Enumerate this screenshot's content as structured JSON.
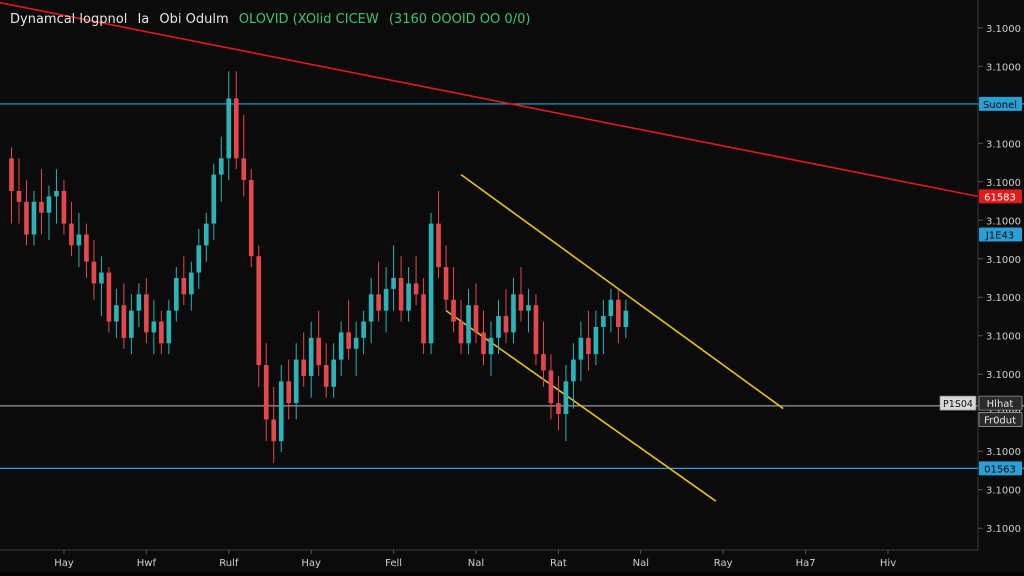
{
  "header": {
    "title": "Dynamcal logpnol",
    "interval": "Ia",
    "symbol": "Obi Odulm",
    "ohlc_label": "OLOVID (XOlid CICEW",
    "ohlc_values": "(3160 OOOID OO 0/0)"
  },
  "colors": {
    "background": "#0b0b0b",
    "up_candle": "#2bb3b8",
    "down_candle": "#e5474c",
    "support_line": "#2a9fd6",
    "trend_line": "#e01b1b",
    "channel_line": "#e8c21c",
    "mid_line": "#bdbdbd",
    "header_title": "#e6e6e6",
    "header_values": "#3cc46a"
  },
  "chart_data": {
    "type": "candlestick",
    "title": "Dynamcal logpnol",
    "xlabel": "",
    "ylabel": "",
    "y_range": [
      0,
      100
    ],
    "grid": false,
    "x_ticks": [
      "Hay",
      "Hwf",
      "Rulf",
      "Hay",
      "Fell",
      "Nal",
      "Rat",
      "Nal",
      "Ray",
      "Ha7",
      "Hiv"
    ],
    "y_ticks": [
      "3.1000",
      "3.1000",
      "3.1000",
      "3.1000",
      "3.1000",
      "3.1000",
      "3.1000",
      "3.1000",
      "3.1000",
      "3.1000",
      "3.1000",
      "3.1000",
      "3.1000",
      "3.1000"
    ],
    "price_tags": [
      {
        "label": "Suonel",
        "value": 82
      },
      {
        "label": "61583",
        "value": 65
      },
      {
        "label": "J1E43",
        "value": 58
      },
      {
        "label": "Hlhat",
        "value": 27
      },
      {
        "label": "Fr0dut",
        "value": 24
      },
      {
        "label": "01563",
        "value": 15
      }
    ],
    "line_labels": [
      {
        "label": "P1S04",
        "value": 27
      }
    ],
    "horizontal_lines": [
      {
        "name": "support-upper",
        "value": 82
      },
      {
        "name": "mid",
        "value": 26.5
      },
      {
        "name": "support-lower",
        "value": 15
      }
    ],
    "trend_lines": [
      {
        "name": "red-downtrend",
        "x1": -2,
        "y1": 101,
        "x2": 130,
        "y2": 65
      },
      {
        "name": "channel-upper",
        "x1": 61,
        "y1": 69,
        "x2": 104,
        "y2": 26
      },
      {
        "name": "channel-lower",
        "x1": 59,
        "y1": 44,
        "x2": 95,
        "y2": 9
      }
    ],
    "candles": [
      [
        1,
        72,
        74,
        60,
        66
      ],
      [
        2,
        66,
        72,
        60,
        64
      ],
      [
        3,
        64,
        68,
        56,
        58
      ],
      [
        4,
        58,
        66,
        56,
        64
      ],
      [
        5,
        64,
        70,
        58,
        62
      ],
      [
        6,
        62,
        67,
        57,
        65
      ],
      [
        7,
        65,
        70,
        60,
        66
      ],
      [
        8,
        66,
        68,
        58,
        60
      ],
      [
        9,
        60,
        64,
        54,
        56
      ],
      [
        10,
        56,
        62,
        52,
        58
      ],
      [
        11,
        58,
        60,
        50,
        53
      ],
      [
        12,
        53,
        57,
        46,
        49
      ],
      [
        13,
        49,
        54,
        43,
        51
      ],
      [
        14,
        51,
        52,
        40,
        42
      ],
      [
        15,
        42,
        48,
        39,
        45
      ],
      [
        16,
        45,
        49,
        37,
        39
      ],
      [
        17,
        39,
        47,
        36,
        44
      ],
      [
        18,
        44,
        49,
        41,
        47
      ],
      [
        19,
        47,
        50,
        38,
        40
      ],
      [
        20,
        40,
        46,
        36,
        42
      ],
      [
        21,
        42,
        44,
        36,
        38
      ],
      [
        22,
        38,
        46,
        36,
        44
      ],
      [
        23,
        44,
        52,
        42,
        50
      ],
      [
        24,
        50,
        54,
        45,
        47
      ],
      [
        25,
        47,
        53,
        44,
        51
      ],
      [
        26,
        51,
        59,
        48,
        56
      ],
      [
        27,
        56,
        62,
        53,
        60
      ],
      [
        28,
        60,
        71,
        57,
        69
      ],
      [
        29,
        69,
        76,
        64,
        72
      ],
      [
        30,
        72,
        88,
        68,
        83
      ],
      [
        31,
        83,
        88,
        70,
        72
      ],
      [
        32,
        72,
        80,
        65,
        68
      ],
      [
        33,
        68,
        70,
        52,
        54
      ],
      [
        34,
        54,
        56,
        30,
        34
      ],
      [
        35,
        34,
        38,
        20,
        24
      ],
      [
        36,
        24,
        30,
        16,
        20
      ],
      [
        37,
        20,
        34,
        18,
        31
      ],
      [
        38,
        31,
        35,
        24,
        27
      ],
      [
        39,
        27,
        38,
        24,
        35
      ],
      [
        40,
        35,
        40,
        30,
        32
      ],
      [
        41,
        32,
        42,
        28,
        39
      ],
      [
        42,
        39,
        44,
        32,
        34
      ],
      [
        43,
        34,
        38,
        28,
        30
      ],
      [
        44,
        30,
        38,
        28,
        35
      ],
      [
        45,
        35,
        42,
        32,
        40
      ],
      [
        46,
        40,
        46,
        35,
        37
      ],
      [
        47,
        37,
        42,
        32,
        39
      ],
      [
        48,
        39,
        44,
        36,
        42
      ],
      [
        49,
        42,
        50,
        38,
        47
      ],
      [
        50,
        47,
        53,
        42,
        44
      ],
      [
        51,
        44,
        52,
        40,
        48
      ],
      [
        52,
        48,
        56,
        44,
        50
      ],
      [
        53,
        50,
        54,
        42,
        44
      ],
      [
        54,
        44,
        52,
        42,
        49
      ],
      [
        55,
        49,
        54,
        45,
        47
      ],
      [
        56,
        47,
        50,
        36,
        38
      ],
      [
        57,
        38,
        62,
        36,
        60
      ],
      [
        58,
        60,
        66,
        50,
        52
      ],
      [
        59,
        52,
        56,
        44,
        46
      ],
      [
        60,
        46,
        52,
        40,
        42
      ],
      [
        61,
        42,
        46,
        36,
        38
      ],
      [
        62,
        38,
        48,
        36,
        45
      ],
      [
        63,
        45,
        49,
        38,
        40
      ],
      [
        64,
        40,
        44,
        34,
        36
      ],
      [
        65,
        36,
        42,
        32,
        39
      ],
      [
        66,
        39,
        46,
        36,
        43
      ],
      [
        67,
        43,
        48,
        38,
        40
      ],
      [
        68,
        40,
        50,
        38,
        47
      ],
      [
        69,
        47,
        52,
        42,
        44
      ],
      [
        70,
        44,
        48,
        40,
        45
      ],
      [
        71,
        45,
        47,
        34,
        36
      ],
      [
        72,
        36,
        42,
        30,
        33
      ],
      [
        73,
        33,
        36,
        24,
        27
      ],
      [
        74,
        27,
        32,
        22,
        25
      ],
      [
        75,
        25,
        34,
        20,
        31
      ],
      [
        76,
        31,
        38,
        26,
        35
      ],
      [
        77,
        35,
        42,
        31,
        39
      ],
      [
        78,
        39,
        44,
        33,
        36
      ],
      [
        79,
        36,
        44,
        34,
        41
      ],
      [
        80,
        41,
        46,
        36,
        43
      ],
      [
        81,
        43,
        48,
        40,
        46
      ],
      [
        82,
        46,
        48,
        38,
        41
      ],
      [
        83,
        41,
        46,
        39,
        44
      ]
    ]
  }
}
